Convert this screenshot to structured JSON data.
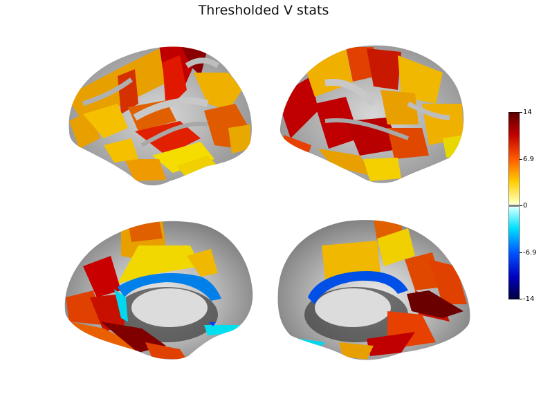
{
  "figure": {
    "title": "Thresholded V stats"
  },
  "views": [
    {
      "hemisphere": "left",
      "view": "lateral"
    },
    {
      "hemisphere": "right",
      "view": "lateral"
    },
    {
      "hemisphere": "left",
      "view": "medial"
    },
    {
      "hemisphere": "right",
      "view": "medial"
    }
  ],
  "colorbar": {
    "colormap": "cold_hot",
    "min": -14,
    "max": 14,
    "ticks": [
      "14",
      "6.9",
      "0",
      "-6.9",
      "-14"
    ],
    "threshold_color": "#808080",
    "stops": [
      "#ffffff",
      "#00e6ff",
      "#0044ff",
      "#00007a",
      "#ffff00",
      "#ff6a00",
      "#e00000",
      "#800000"
    ]
  }
}
